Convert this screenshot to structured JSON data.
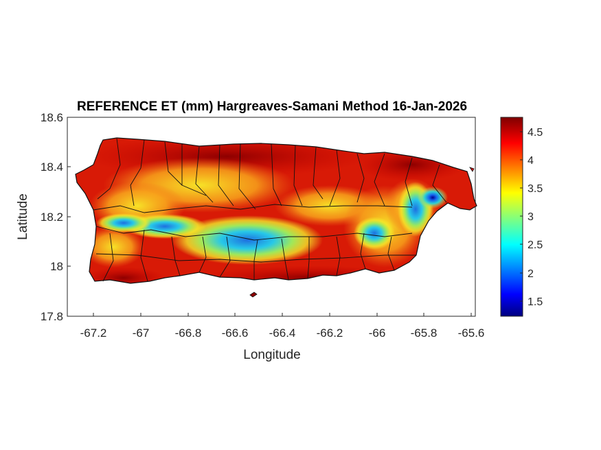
{
  "title": "REFERENCE ET (mm) Hargreaves-Samani Method  16-Jan-2026",
  "xlabel": "Longitude",
  "ylabel": "Latitude",
  "xticks": [
    "-67.2",
    "-67",
    "-66.8",
    "-66.6",
    "-66.4",
    "-66.2",
    "-66",
    "-65.8",
    "-65.6"
  ],
  "yticks": [
    "18.6",
    "18.4",
    "18.2",
    "18",
    "17.8"
  ],
  "colorbar": {
    "ticks": [
      "4.5",
      "4",
      "3.5",
      "3",
      "2.5",
      "2",
      "1.5"
    ],
    "range": [
      1.25,
      4.75
    ],
    "colormap": "jet"
  },
  "chart_data": {
    "type": "heatmap",
    "title": "REFERENCE ET (mm) Hargreaves-Samani Method  16-Jan-2026",
    "xlabel": "Longitude",
    "ylabel": "Latitude",
    "xlim": [
      -67.3,
      -65.59
    ],
    "ylim": [
      17.8,
      18.6
    ],
    "color_range": [
      1.25,
      4.75
    ],
    "description_values": {
      "coastal_high": 4.6,
      "interior_low": 2.4,
      "northeast_minimum": 1.5
    }
  }
}
